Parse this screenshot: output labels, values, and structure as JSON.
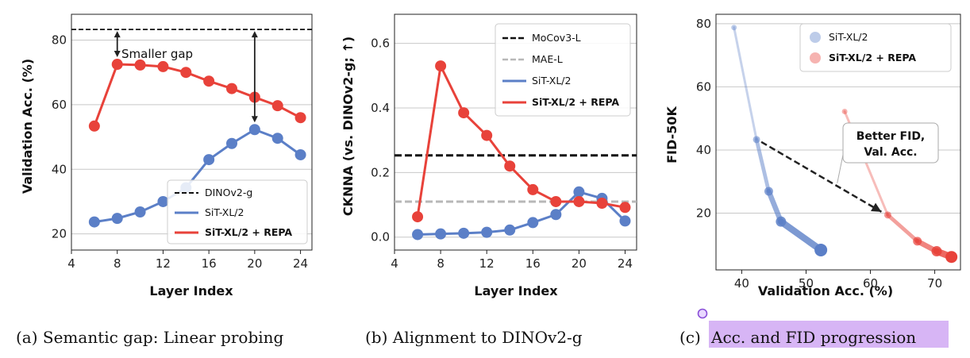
{
  "colors": {
    "repa": "#e8423a",
    "sit": "#5b7fc7",
    "dino": "#111111",
    "mocov3": "#111111",
    "mae": "#b8b8b8",
    "highlight": "#d7b5f5",
    "arrow": "#222222"
  },
  "chart_data": [
    {
      "type": "line",
      "id": "a",
      "caption": "(a) Semantic gap: Linear probing",
      "xlabel": "Layer Index",
      "ylabel": "Validation Acc. (%)",
      "xlim": [
        4,
        25
      ],
      "ylim": [
        15,
        88
      ],
      "xticks": [
        4,
        8,
        12,
        16,
        20,
        24
      ],
      "yticks": [
        20,
        40,
        60,
        80
      ],
      "grid": true,
      "legend_position": "lower-right",
      "hlines": [
        {
          "name": "DINOv2-g",
          "value": 83.3,
          "style": "dashed",
          "color_key": "dino"
        }
      ],
      "series": [
        {
          "name": "SiT-XL/2",
          "color_key": "sit",
          "x": [
            6,
            8,
            10,
            12,
            14,
            16,
            18,
            20,
            22,
            24
          ],
          "y": [
            23.7,
            24.8,
            26.8,
            30.0,
            34.3,
            43.0,
            48.0,
            52.3,
            49.6,
            44.5
          ]
        },
        {
          "name": "SiT-XL/2 + REPA",
          "color_key": "repa",
          "x": [
            6,
            8,
            10,
            12,
            14,
            16,
            18,
            20,
            22,
            24
          ],
          "y": [
            53.4,
            72.5,
            72.3,
            71.8,
            70.0,
            67.3,
            65.0,
            62.3,
            59.7,
            56.0
          ]
        }
      ],
      "legend": [
        "DINOv2-g",
        "SiT-XL/2",
        "SiT-XL/2 + REPA"
      ],
      "annotations": [
        {
          "text": "Smaller gap",
          "type": "double-arrow",
          "x": 8,
          "y_from": 83.3,
          "y_to": 72.5
        },
        {
          "text": "",
          "type": "double-arrow",
          "x": 20,
          "y_from": 83.3,
          "y_to": 52.3
        }
      ]
    },
    {
      "type": "line",
      "id": "b",
      "caption": "(b) Alignment to DINOv2-g",
      "xlabel": "Layer Index",
      "ylabel": "CKNNA (vs. DINOv2-g; ↑)",
      "xlim": [
        4,
        25
      ],
      "ylim": [
        -0.04,
        0.69
      ],
      "xticks": [
        4,
        8,
        12,
        16,
        20,
        24
      ],
      "yticks": [
        0.0,
        0.2,
        0.4,
        0.6
      ],
      "ytick_labels": [
        "0.0",
        "0.2",
        "0.4",
        "0.6"
      ],
      "grid": true,
      "legend_position": "top-right",
      "hlines": [
        {
          "name": "MoCov3-L",
          "value": 0.253,
          "style": "dashed",
          "color_key": "mocov3"
        },
        {
          "name": "MAE-L",
          "value": 0.11,
          "style": "dashed",
          "color_key": "mae"
        }
      ],
      "series": [
        {
          "name": "SiT-XL/2",
          "color_key": "sit",
          "x": [
            6,
            8,
            10,
            12,
            14,
            16,
            18,
            20,
            22,
            24
          ],
          "y": [
            0.008,
            0.01,
            0.012,
            0.015,
            0.022,
            0.045,
            0.07,
            0.14,
            0.12,
            0.05
          ]
        },
        {
          "name": "SiT-XL/2 + REPA",
          "color_key": "repa",
          "x": [
            6,
            8,
            10,
            12,
            14,
            16,
            18,
            20,
            22,
            24
          ],
          "y": [
            0.063,
            0.53,
            0.385,
            0.315,
            0.22,
            0.147,
            0.11,
            0.11,
            0.105,
            0.092
          ]
        }
      ],
      "legend": [
        "MoCov3-L",
        "MAE-L",
        "SiT-XL/2",
        "SiT-XL/2 + REPA"
      ]
    },
    {
      "type": "scatter",
      "id": "c",
      "caption_prefix": "(c) ",
      "caption": "Acc. and FID progression",
      "xlabel": "Validation Acc. (%)",
      "ylabel": "FID-50K",
      "xlim": [
        36,
        74
      ],
      "ylim": [
        2,
        83
      ],
      "xticks": [
        40,
        50,
        60,
        70
      ],
      "yticks": [
        20,
        40,
        60,
        80
      ],
      "grid": true,
      "legend_position": "top-right",
      "series": [
        {
          "name": "SiT-XL/2",
          "color_key": "sit",
          "x": [
            38.8,
            42.3,
            44.2,
            46.1,
            52.3
          ],
          "y": [
            78.8,
            43.3,
            26.9,
            17.3,
            8.3
          ],
          "sizes": [
            3.5,
            4.5,
            5.5,
            6.5,
            8
          ]
        },
        {
          "name": "SiT-XL/2 + REPA",
          "color_key": "repa",
          "x": [
            56.0,
            62.7,
            67.3,
            70.3,
            72.6
          ],
          "y": [
            52.2,
            19.4,
            11.1,
            7.9,
            6.1
          ],
          "sizes": [
            3.5,
            4.5,
            5.5,
            6.5,
            7.5
          ]
        }
      ],
      "legend": [
        "SiT-XL/2",
        "SiT-XL/2 + REPA"
      ],
      "annotations": [
        {
          "text_lines": [
            "Better FID,",
            "Val. Acc."
          ],
          "type": "arrow",
          "from": [
            42.3,
            43.3
          ],
          "to": [
            62.7,
            19.4
          ]
        }
      ]
    }
  ]
}
